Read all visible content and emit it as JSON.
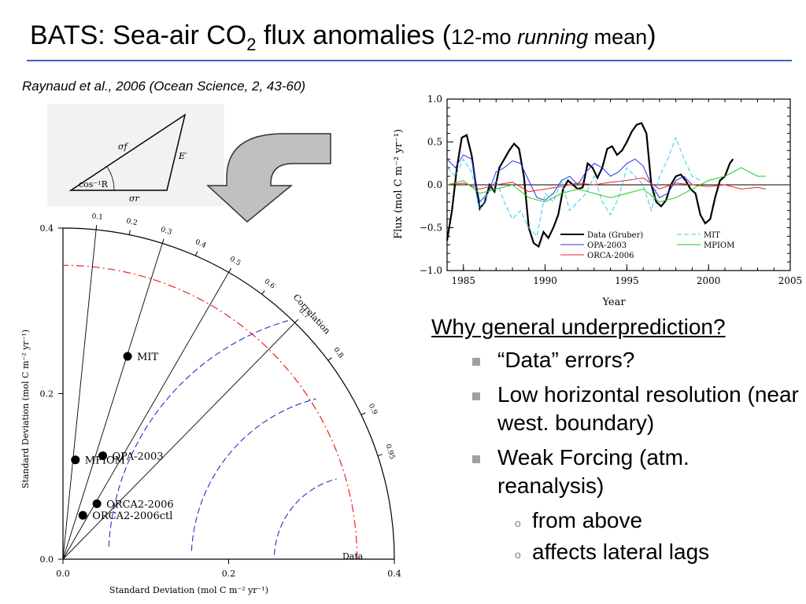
{
  "slide": {
    "title_main": "BATS: Sea-air CO",
    "title_sub": "2",
    "title_mid": " flux anomalies (",
    "title_small_a": "12-mo ",
    "title_small_italic": "running",
    "title_small_b": " mean",
    "title_close": ")",
    "citation": "Raynaud et al., 2006 (Ocean Science, 2, 43-60)"
  },
  "triangle_diagram": {
    "label_sigma_f": "σf",
    "label_e_prime": "E′",
    "label_cos": "cos⁻¹R",
    "label_sigma_r": "σr"
  },
  "colors": {
    "accent_rule": "#3b5fc8",
    "data": "#000000",
    "opa": "#2233ee",
    "orca": "#ee2222",
    "mit": "#33ccee",
    "mpiom": "#22cc22",
    "arrow_fill": "#c0c0c0"
  },
  "bullets": {
    "heading": "Why general underprediction?",
    "items": [
      {
        "text": "“Data” errors?"
      },
      {
        "text": "Low horizontal resolution (near west. boundary)"
      },
      {
        "text": "Weak Forcing (atm. reanalysis)"
      }
    ],
    "subitems": [
      {
        "text": "from above"
      },
      {
        "text": "affects lateral lags"
      }
    ]
  },
  "chart_data": [
    {
      "type": "scatter",
      "subtype": "taylor-diagram",
      "xlabel": "Standard Deviation (mol C m⁻² yr⁻¹)",
      "ylabel": "Standard Deviation (mol C m⁻² yr⁻¹)",
      "xlim": [
        0,
        0.4
      ],
      "ylim": [
        0,
        0.4
      ],
      "x_ticks": [
        "0.0",
        "0.2",
        "0.4"
      ],
      "y_ticks": [
        "0.0",
        "0.2",
        "0.4"
      ],
      "reference_label": "Data",
      "reference_std": 0.355,
      "correlation_label": "Correlation",
      "correlation_ticks": [
        "0.1",
        "0.2",
        "0.3",
        "0.4",
        "0.5",
        "0.6",
        "0.7",
        "0.8",
        "0.9",
        "0.95"
      ],
      "points": [
        {
          "name": "MIT",
          "x": 0.078,
          "y": 0.245
        },
        {
          "name": "OPA-2003",
          "x": 0.048,
          "y": 0.125
        },
        {
          "name": "MPIOM",
          "x": 0.015,
          "y": 0.12
        },
        {
          "name": "ORCA2-2006",
          "x": 0.041,
          "y": 0.067
        },
        {
          "name": "ORCA2-2006ctl",
          "x": 0.024,
          "y": 0.053
        }
      ]
    },
    {
      "type": "line",
      "xlabel": "Year",
      "ylabel": "Flux (mol C m⁻² yr⁻¹)",
      "xlim": [
        1984,
        2005
      ],
      "ylim": [
        -1.0,
        1.0
      ],
      "x_ticks": [
        "1985",
        "1990",
        "1995",
        "2000",
        "2005"
      ],
      "y_ticks": [
        "−1.0",
        "−0.5",
        "0.0",
        "0.5",
        "1.0"
      ],
      "legend": {
        "placement": "bottom-right",
        "entries": [
          "Data (Gruber)",
          "MIT",
          "OPA-2003",
          "MPIOM",
          "ORCA-2006"
        ]
      },
      "series": [
        {
          "name": "Data (Gruber)",
          "color": "#000000",
          "x": [
            1984.0,
            1984.3,
            1984.6,
            1984.9,
            1985.2,
            1985.5,
            1985.8,
            1986.0,
            1986.3,
            1986.6,
            1986.9,
            1987.2,
            1987.5,
            1987.8,
            1988.1,
            1988.4,
            1988.7,
            1989.0,
            1989.3,
            1989.6,
            1989.9,
            1990.2,
            1990.5,
            1990.8,
            1991.1,
            1991.4,
            1991.7,
            1992.0,
            1992.3,
            1992.6,
            1992.9,
            1993.2,
            1993.5,
            1993.8,
            1994.1,
            1994.4,
            1994.7,
            1995.0,
            1995.3,
            1995.6,
            1995.9,
            1996.2,
            1996.5,
            1996.8,
            1997.1,
            1997.4,
            1997.7,
            1998.0,
            1998.3,
            1998.6,
            1998.9,
            1999.2,
            1999.5,
            1999.8,
            2000.1,
            2000.4,
            2000.7,
            2001.0,
            2001.3,
            2001.5
          ],
          "y": [
            -0.65,
            -0.3,
            0.2,
            0.55,
            0.58,
            0.35,
            -0.05,
            -0.28,
            -0.2,
            0.0,
            -0.08,
            0.2,
            0.3,
            0.4,
            0.48,
            0.42,
            0.1,
            -0.5,
            -0.68,
            -0.72,
            -0.55,
            -0.62,
            -0.5,
            -0.35,
            -0.05,
            0.05,
            0.0,
            -0.05,
            -0.03,
            0.25,
            0.2,
            0.08,
            0.2,
            0.42,
            0.45,
            0.35,
            0.4,
            0.5,
            0.62,
            0.7,
            0.72,
            0.6,
            0.0,
            -0.2,
            -0.25,
            -0.18,
            0.0,
            0.1,
            0.12,
            0.05,
            -0.05,
            -0.1,
            -0.35,
            -0.45,
            -0.4,
            -0.15,
            0.05,
            0.1,
            0.25,
            0.3
          ]
        },
        {
          "name": "OPA-2003",
          "color": "#2233ee",
          "x": [
            1984.0,
            1984.5,
            1985.0,
            1985.5,
            1986.0,
            1986.5,
            1987.0,
            1987.5,
            1988.0,
            1988.5,
            1989.0,
            1989.5,
            1990.0,
            1990.5,
            1991.0,
            1991.5,
            1992.0,
            1992.5,
            1993.0,
            1993.5,
            1994.0,
            1994.5,
            1995.0,
            1995.5,
            1996.0,
            1996.5,
            1997.0,
            1997.5,
            1998.0,
            1998.5,
            1999.0
          ],
          "y": [
            0.3,
            0.2,
            0.35,
            0.3,
            -0.2,
            -0.1,
            0.15,
            0.2,
            0.28,
            0.25,
            0.05,
            -0.15,
            -0.18,
            -0.1,
            0.05,
            0.1,
            0.0,
            0.15,
            0.25,
            0.2,
            0.1,
            0.15,
            0.25,
            0.3,
            0.22,
            0.0,
            -0.15,
            -0.1,
            0.05,
            0.1,
            0.0
          ]
        },
        {
          "name": "ORCA-2006",
          "color": "#ee2222",
          "x": [
            1984.0,
            1985.0,
            1986.0,
            1987.0,
            1988.0,
            1989.0,
            1990.0,
            1991.0,
            1992.0,
            1993.0,
            1994.0,
            1995.0,
            1996.0,
            1997.0,
            1998.0,
            1999.0,
            2000.0,
            2001.0,
            2002.0,
            2003.0,
            2003.5
          ],
          "y": [
            0.0,
            0.02,
            -0.05,
            0.0,
            0.03,
            -0.08,
            -0.05,
            -0.02,
            0.02,
            0.0,
            0.03,
            0.05,
            0.08,
            -0.05,
            0.02,
            0.0,
            -0.02,
            0.0,
            -0.05,
            -0.03,
            -0.05
          ]
        },
        {
          "name": "MIT",
          "color": "#33ccee",
          "x": [
            1984.0,
            1984.5,
            1985.0,
            1985.5,
            1986.0,
            1986.5,
            1987.0,
            1987.5,
            1988.0,
            1988.5,
            1989.0,
            1989.5,
            1990.0,
            1990.5,
            1991.0,
            1991.5,
            1992.0,
            1992.5,
            1993.0,
            1993.5,
            1994.0,
            1994.5,
            1995.0,
            1995.5,
            1996.0,
            1996.5,
            1997.0,
            1997.5,
            1998.0,
            1998.5,
            1999.0,
            1999.5
          ],
          "y": [
            0.2,
            0.1,
            0.3,
            0.15,
            -0.3,
            -0.1,
            0.05,
            -0.2,
            -0.4,
            -0.3,
            -0.5,
            -0.6,
            -0.1,
            -0.2,
            0.05,
            -0.3,
            -0.2,
            -0.1,
            0.1,
            -0.2,
            -0.35,
            -0.15,
            0.2,
            0.1,
            0.0,
            -0.3,
            0.1,
            0.3,
            0.55,
            0.3,
            0.1,
            0.05
          ]
        },
        {
          "name": "MPIOM",
          "color": "#22cc22",
          "x": [
            1984.0,
            1985.0,
            1986.0,
            1987.0,
            1988.0,
            1989.0,
            1990.0,
            1991.0,
            1992.0,
            1993.0,
            1994.0,
            1995.0,
            1996.0,
            1997.0,
            1998.0,
            1999.0,
            2000.0,
            2001.0,
            2002.0,
            2002.5,
            2003.0,
            2003.5
          ],
          "y": [
            0.0,
            0.05,
            -0.1,
            -0.05,
            0.0,
            -0.15,
            -0.2,
            -0.1,
            -0.05,
            -0.1,
            -0.15,
            -0.1,
            -0.05,
            -0.2,
            -0.15,
            -0.05,
            0.05,
            0.1,
            0.2,
            0.15,
            0.1,
            0.1
          ]
        }
      ]
    }
  ]
}
